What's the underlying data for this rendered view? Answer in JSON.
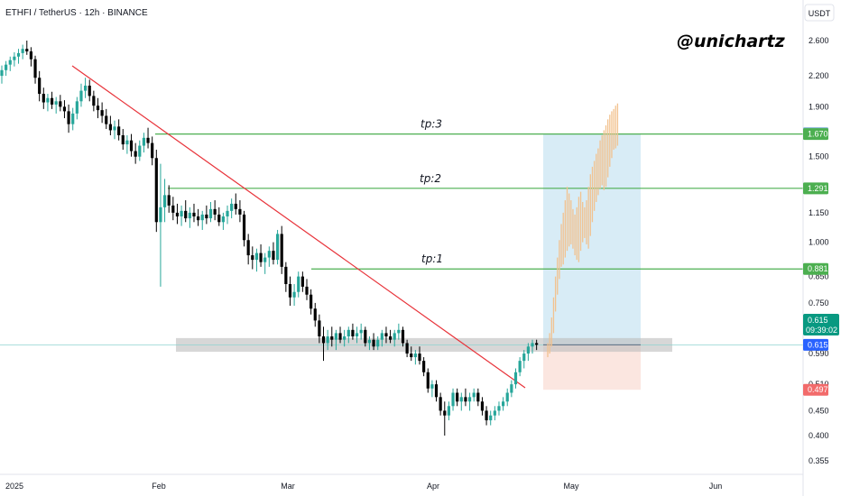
{
  "header": {
    "title": "ETHFI / TetherUS · 12h · BINANCE",
    "currency_button": "USDT",
    "watermark": "@unichartz"
  },
  "chart_data": {
    "type": "candlestick",
    "title": "ETHFI / TetherUS · 12h · BINANCE",
    "scale": "log",
    "ylim": [
      0.34,
      2.85
    ],
    "y_ticks": [
      "2.600",
      "2.200",
      "1.900",
      "1.500",
      "1.150",
      "1.000",
      "0.850",
      "0.750",
      "0.590",
      "0.510",
      "0.450",
      "0.400",
      "0.355"
    ],
    "x_ticks": [
      "2025",
      "Feb",
      "Mar",
      "Apr",
      "May",
      "Jun"
    ],
    "colors": {
      "up": "#26a69a",
      "down": "#000000",
      "projection": "#f2c28f",
      "trendline": "#e8333a",
      "target": "#4caf50"
    },
    "candles": [
      {
        "o": 2.2,
        "h": 2.31,
        "l": 2.12,
        "c": 2.26
      },
      {
        "o": 2.26,
        "h": 2.36,
        "l": 2.2,
        "c": 2.32
      },
      {
        "o": 2.32,
        "h": 2.41,
        "l": 2.25,
        "c": 2.37
      },
      {
        "o": 2.37,
        "h": 2.46,
        "l": 2.3,
        "c": 2.41
      },
      {
        "o": 2.41,
        "h": 2.5,
        "l": 2.33,
        "c": 2.45
      },
      {
        "o": 2.45,
        "h": 2.55,
        "l": 2.38,
        "c": 2.5
      },
      {
        "o": 2.5,
        "h": 2.6,
        "l": 2.43,
        "c": 2.47
      },
      {
        "o": 2.47,
        "h": 2.52,
        "l": 2.3,
        "c": 2.38
      },
      {
        "o": 2.38,
        "h": 2.42,
        "l": 2.12,
        "c": 2.18
      },
      {
        "o": 2.18,
        "h": 2.25,
        "l": 1.95,
        "c": 2.02
      },
      {
        "o": 2.02,
        "h": 2.08,
        "l": 1.88,
        "c": 1.94
      },
      {
        "o": 1.94,
        "h": 2.02,
        "l": 1.86,
        "c": 1.98
      },
      {
        "o": 1.98,
        "h": 2.04,
        "l": 1.88,
        "c": 1.92
      },
      {
        "o": 1.92,
        "h": 1.99,
        "l": 1.84,
        "c": 1.95
      },
      {
        "o": 1.95,
        "h": 2.01,
        "l": 1.86,
        "c": 1.9
      },
      {
        "o": 1.9,
        "h": 1.96,
        "l": 1.8,
        "c": 1.86
      },
      {
        "o": 1.86,
        "h": 1.92,
        "l": 1.68,
        "c": 1.75
      },
      {
        "o": 1.75,
        "h": 1.89,
        "l": 1.7,
        "c": 1.84
      },
      {
        "o": 1.84,
        "h": 1.99,
        "l": 1.79,
        "c": 1.95
      },
      {
        "o": 1.95,
        "h": 2.12,
        "l": 1.9,
        "c": 2.05
      },
      {
        "o": 2.05,
        "h": 2.18,
        "l": 1.98,
        "c": 2.1
      },
      {
        "o": 2.1,
        "h": 2.16,
        "l": 1.95,
        "c": 2.0
      },
      {
        "o": 2.0,
        "h": 2.05,
        "l": 1.86,
        "c": 1.91
      },
      {
        "o": 1.91,
        "h": 1.98,
        "l": 1.8,
        "c": 1.87
      },
      {
        "o": 1.87,
        "h": 1.94,
        "l": 1.76,
        "c": 1.82
      },
      {
        "o": 1.82,
        "h": 1.88,
        "l": 1.71,
        "c": 1.75
      },
      {
        "o": 1.75,
        "h": 1.82,
        "l": 1.66,
        "c": 1.7
      },
      {
        "o": 1.7,
        "h": 1.78,
        "l": 1.63,
        "c": 1.73
      },
      {
        "o": 1.73,
        "h": 1.79,
        "l": 1.62,
        "c": 1.66
      },
      {
        "o": 1.66,
        "h": 1.71,
        "l": 1.55,
        "c": 1.59
      },
      {
        "o": 1.59,
        "h": 1.66,
        "l": 1.52,
        "c": 1.62
      },
      {
        "o": 1.62,
        "h": 1.67,
        "l": 1.5,
        "c": 1.54
      },
      {
        "o": 1.54,
        "h": 1.6,
        "l": 1.45,
        "c": 1.5
      },
      {
        "o": 1.5,
        "h": 1.62,
        "l": 1.47,
        "c": 1.58
      },
      {
        "o": 1.58,
        "h": 1.68,
        "l": 1.53,
        "c": 1.64
      },
      {
        "o": 1.64,
        "h": 1.72,
        "l": 1.56,
        "c": 1.6
      },
      {
        "o": 1.6,
        "h": 1.65,
        "l": 1.44,
        "c": 1.49
      },
      {
        "o": 1.49,
        "h": 1.55,
        "l": 1.05,
        "c": 1.1
      },
      {
        "o": 1.1,
        "h": 1.45,
        "l": 0.81,
        "c": 1.18
      },
      {
        "o": 1.18,
        "h": 1.35,
        "l": 1.1,
        "c": 1.25
      },
      {
        "o": 1.25,
        "h": 1.31,
        "l": 1.15,
        "c": 1.19
      },
      {
        "o": 1.19,
        "h": 1.24,
        "l": 1.11,
        "c": 1.15
      },
      {
        "o": 1.15,
        "h": 1.2,
        "l": 1.09,
        "c": 1.13
      },
      {
        "o": 1.13,
        "h": 1.19,
        "l": 1.08,
        "c": 1.16
      },
      {
        "o": 1.16,
        "h": 1.22,
        "l": 1.1,
        "c": 1.12
      },
      {
        "o": 1.12,
        "h": 1.18,
        "l": 1.07,
        "c": 1.15
      },
      {
        "o": 1.15,
        "h": 1.2,
        "l": 1.1,
        "c": 1.13
      },
      {
        "o": 1.13,
        "h": 1.17,
        "l": 1.08,
        "c": 1.11
      },
      {
        "o": 1.11,
        "h": 1.16,
        "l": 1.06,
        "c": 1.14
      },
      {
        "o": 1.14,
        "h": 1.19,
        "l": 1.09,
        "c": 1.12
      },
      {
        "o": 1.12,
        "h": 1.21,
        "l": 1.1,
        "c": 1.17
      },
      {
        "o": 1.17,
        "h": 1.22,
        "l": 1.11,
        "c": 1.14
      },
      {
        "o": 1.14,
        "h": 1.18,
        "l": 1.08,
        "c": 1.1
      },
      {
        "o": 1.1,
        "h": 1.15,
        "l": 1.06,
        "c": 1.13
      },
      {
        "o": 1.13,
        "h": 1.19,
        "l": 1.09,
        "c": 1.16
      },
      {
        "o": 1.16,
        "h": 1.23,
        "l": 1.12,
        "c": 1.2
      },
      {
        "o": 1.2,
        "h": 1.26,
        "l": 1.14,
        "c": 1.17
      },
      {
        "o": 1.17,
        "h": 1.22,
        "l": 1.1,
        "c": 1.14
      },
      {
        "o": 1.14,
        "h": 1.16,
        "l": 0.98,
        "c": 1.01
      },
      {
        "o": 1.01,
        "h": 1.04,
        "l": 0.9,
        "c": 0.94
      },
      {
        "o": 0.94,
        "h": 0.98,
        "l": 0.88,
        "c": 0.92
      },
      {
        "o": 0.92,
        "h": 0.97,
        "l": 0.87,
        "c": 0.95
      },
      {
        "o": 0.95,
        "h": 0.99,
        "l": 0.89,
        "c": 0.91
      },
      {
        "o": 0.91,
        "h": 0.95,
        "l": 0.86,
        "c": 0.93
      },
      {
        "o": 0.93,
        "h": 0.98,
        "l": 0.89,
        "c": 0.96
      },
      {
        "o": 0.96,
        "h": 1.0,
        "l": 0.9,
        "c": 0.92
      },
      {
        "o": 0.92,
        "h": 1.06,
        "l": 0.9,
        "c": 1.04
      },
      {
        "o": 1.04,
        "h": 1.08,
        "l": 0.86,
        "c": 0.89
      },
      {
        "o": 0.89,
        "h": 0.91,
        "l": 0.79,
        "c": 0.82
      },
      {
        "o": 0.82,
        "h": 0.85,
        "l": 0.74,
        "c": 0.77
      },
      {
        "o": 0.77,
        "h": 0.82,
        "l": 0.74,
        "c": 0.79
      },
      {
        "o": 0.79,
        "h": 0.87,
        "l": 0.77,
        "c": 0.85
      },
      {
        "o": 0.85,
        "h": 0.87,
        "l": 0.79,
        "c": 0.81
      },
      {
        "o": 0.81,
        "h": 0.84,
        "l": 0.76,
        "c": 0.78
      },
      {
        "o": 0.78,
        "h": 0.8,
        "l": 0.71,
        "c": 0.73
      },
      {
        "o": 0.73,
        "h": 0.75,
        "l": 0.67,
        "c": 0.69
      },
      {
        "o": 0.69,
        "h": 0.71,
        "l": 0.62,
        "c": 0.64
      },
      {
        "o": 0.64,
        "h": 0.67,
        "l": 0.57,
        "c": 0.62
      },
      {
        "o": 0.62,
        "h": 0.66,
        "l": 0.6,
        "c": 0.64
      },
      {
        "o": 0.64,
        "h": 0.67,
        "l": 0.61,
        "c": 0.63
      },
      {
        "o": 0.63,
        "h": 0.66,
        "l": 0.6,
        "c": 0.65
      },
      {
        "o": 0.65,
        "h": 0.67,
        "l": 0.62,
        "c": 0.63
      },
      {
        "o": 0.63,
        "h": 0.66,
        "l": 0.61,
        "c": 0.64
      },
      {
        "o": 0.64,
        "h": 0.67,
        "l": 0.62,
        "c": 0.66
      },
      {
        "o": 0.66,
        "h": 0.68,
        "l": 0.63,
        "c": 0.64
      },
      {
        "o": 0.64,
        "h": 0.67,
        "l": 0.62,
        "c": 0.65
      },
      {
        "o": 0.65,
        "h": 0.68,
        "l": 0.63,
        "c": 0.66
      },
      {
        "o": 0.66,
        "h": 0.67,
        "l": 0.61,
        "c": 0.62
      },
      {
        "o": 0.62,
        "h": 0.64,
        "l": 0.6,
        "c": 0.63
      },
      {
        "o": 0.63,
        "h": 0.65,
        "l": 0.6,
        "c": 0.61
      },
      {
        "o": 0.61,
        "h": 0.64,
        "l": 0.6,
        "c": 0.63
      },
      {
        "o": 0.63,
        "h": 0.66,
        "l": 0.61,
        "c": 0.65
      },
      {
        "o": 0.65,
        "h": 0.67,
        "l": 0.62,
        "c": 0.64
      },
      {
        "o": 0.64,
        "h": 0.66,
        "l": 0.62,
        "c": 0.63
      },
      {
        "o": 0.63,
        "h": 0.66,
        "l": 0.61,
        "c": 0.65
      },
      {
        "o": 0.65,
        "h": 0.68,
        "l": 0.63,
        "c": 0.66
      },
      {
        "o": 0.66,
        "h": 0.67,
        "l": 0.61,
        "c": 0.62
      },
      {
        "o": 0.62,
        "h": 0.63,
        "l": 0.58,
        "c": 0.59
      },
      {
        "o": 0.59,
        "h": 0.61,
        "l": 0.57,
        "c": 0.58
      },
      {
        "o": 0.58,
        "h": 0.6,
        "l": 0.56,
        "c": 0.59
      },
      {
        "o": 0.59,
        "h": 0.61,
        "l": 0.56,
        "c": 0.57
      },
      {
        "o": 0.57,
        "h": 0.58,
        "l": 0.53,
        "c": 0.54
      },
      {
        "o": 0.54,
        "h": 0.55,
        "l": 0.49,
        "c": 0.5
      },
      {
        "o": 0.5,
        "h": 0.52,
        "l": 0.48,
        "c": 0.51
      },
      {
        "o": 0.51,
        "h": 0.52,
        "l": 0.47,
        "c": 0.48
      },
      {
        "o": 0.48,
        "h": 0.49,
        "l": 0.44,
        "c": 0.45
      },
      {
        "o": 0.45,
        "h": 0.47,
        "l": 0.4,
        "c": 0.44
      },
      {
        "o": 0.44,
        "h": 0.47,
        "l": 0.43,
        "c": 0.46
      },
      {
        "o": 0.46,
        "h": 0.5,
        "l": 0.45,
        "c": 0.49
      },
      {
        "o": 0.49,
        "h": 0.5,
        "l": 0.46,
        "c": 0.47
      },
      {
        "o": 0.47,
        "h": 0.49,
        "l": 0.45,
        "c": 0.48
      },
      {
        "o": 0.48,
        "h": 0.5,
        "l": 0.46,
        "c": 0.47
      },
      {
        "o": 0.47,
        "h": 0.49,
        "l": 0.45,
        "c": 0.48
      },
      {
        "o": 0.48,
        "h": 0.5,
        "l": 0.47,
        "c": 0.49
      },
      {
        "o": 0.49,
        "h": 0.5,
        "l": 0.46,
        "c": 0.47
      },
      {
        "o": 0.47,
        "h": 0.48,
        "l": 0.44,
        "c": 0.45
      },
      {
        "o": 0.45,
        "h": 0.46,
        "l": 0.42,
        "c": 0.43
      },
      {
        "o": 0.43,
        "h": 0.45,
        "l": 0.42,
        "c": 0.44
      },
      {
        "o": 0.44,
        "h": 0.46,
        "l": 0.43,
        "c": 0.45
      },
      {
        "o": 0.45,
        "h": 0.47,
        "l": 0.44,
        "c": 0.46
      },
      {
        "o": 0.46,
        "h": 0.48,
        "l": 0.45,
        "c": 0.47
      },
      {
        "o": 0.47,
        "h": 0.5,
        "l": 0.46,
        "c": 0.49
      },
      {
        "o": 0.49,
        "h": 0.52,
        "l": 0.48,
        "c": 0.51
      },
      {
        "o": 0.51,
        "h": 0.55,
        "l": 0.5,
        "c": 0.54
      },
      {
        "o": 0.54,
        "h": 0.58,
        "l": 0.53,
        "c": 0.57
      },
      {
        "o": 0.57,
        "h": 0.6,
        "l": 0.55,
        "c": 0.59
      },
      {
        "o": 0.59,
        "h": 0.62,
        "l": 0.57,
        "c": 0.61
      },
      {
        "o": 0.61,
        "h": 0.63,
        "l": 0.59,
        "c": 0.62
      },
      {
        "o": 0.62,
        "h": 0.63,
        "l": 0.6,
        "c": 0.615
      }
    ],
    "projection": {
      "lows": [
        0.58,
        0.59,
        0.61,
        0.65,
        0.72,
        0.78,
        0.84,
        0.89,
        0.9,
        0.93,
        0.96,
        0.98,
        0.99,
        0.97,
        0.94,
        0.92,
        0.91,
        0.96,
        1.0,
        1.02,
        0.99,
        0.97,
        1.03,
        1.1,
        1.16,
        1.21,
        1.25,
        1.29,
        1.31,
        1.28,
        1.3,
        1.36,
        1.43,
        1.49,
        1.55,
        1.56,
        1.58
      ],
      "highs": [
        0.62,
        0.65,
        0.7,
        0.77,
        0.85,
        0.93,
        1.01,
        1.09,
        1.15,
        1.22,
        1.3,
        1.26,
        1.22,
        1.17,
        1.14,
        1.18,
        1.24,
        1.27,
        1.21,
        1.18,
        1.22,
        1.3,
        1.38,
        1.43,
        1.47,
        1.52,
        1.56,
        1.62,
        1.66,
        1.7,
        1.74,
        1.79,
        1.83,
        1.86,
        1.88,
        1.91,
        1.93
      ]
    },
    "target_levels": [
      {
        "label": "tp:3",
        "value": 1.67
      },
      {
        "label": "tp:2",
        "value": 1.291
      },
      {
        "label": "tp:1",
        "value": 0.881
      }
    ],
    "entry_zone": {
      "low": 0.595,
      "high": 0.635
    },
    "position": {
      "entry": 0.615,
      "target": 1.67,
      "stop": 0.497
    },
    "price_boxes": [
      {
        "text": "1.677",
        "value": 1.677,
        "color": "#8bb8dc"
      },
      {
        "text": "1.670",
        "value": 1.67,
        "color": "#4caf50"
      },
      {
        "text": "1.291",
        "value": 1.291,
        "color": "#4caf50"
      },
      {
        "text": "0.881",
        "value": 0.881,
        "color": "#4caf50"
      },
      {
        "text": "0.615",
        "value": 0.615,
        "color": "#2962ff"
      },
      {
        "text": "0.497",
        "value": 0.497,
        "color": "#f26b6b"
      }
    ],
    "last_price": {
      "price": "0.615",
      "countdown": "09:39:02",
      "color": "#089981"
    }
  }
}
